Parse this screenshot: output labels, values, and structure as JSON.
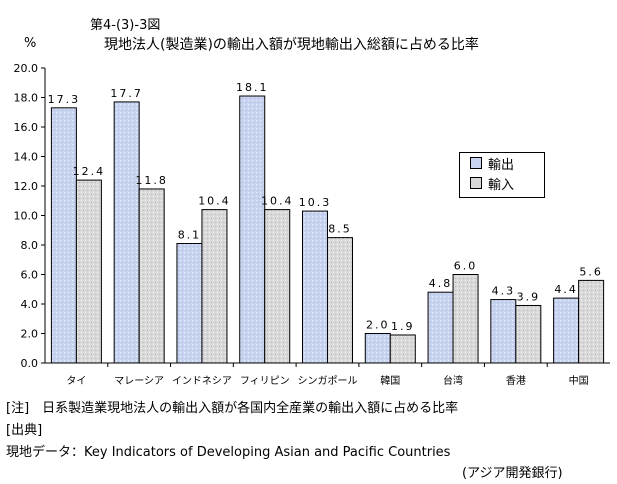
{
  "figure_number": "第4-(3)-3図",
  "unit_label": "%",
  "title": "現地法人(製造業)の輸出入額が現地輸出入総額に占める比率",
  "legend": {
    "export_label": "輸出",
    "import_label": "輸入"
  },
  "colors": {
    "export": "#c8d4ef",
    "import": "#d9d9d9",
    "grid": "#000000"
  },
  "chart_data": {
    "type": "bar",
    "title": "現地法人(製造業)の輸出入額が現地輸出入総額に占める比率",
    "xlabel": "",
    "ylabel": "%",
    "ylim": [
      0,
      20
    ],
    "yticks": [
      "0.0",
      "2.0",
      "4.0",
      "6.0",
      "8.0",
      "10.0",
      "12.0",
      "14.0",
      "16.0",
      "18.0",
      "20.0"
    ],
    "categories": [
      "タイ",
      "マレーシア",
      "インドネシア",
      "フィリピン",
      "シンガポール",
      "韓国",
      "台湾",
      "香港",
      "中国"
    ],
    "series": [
      {
        "name": "輸出",
        "values": [
          17.3,
          17.7,
          8.1,
          18.1,
          10.3,
          2.0,
          4.8,
          4.3,
          4.4
        ],
        "labels": [
          "17.3",
          "17.7",
          "8.1",
          "18.1",
          "10.3",
          "2.0",
          "4.8",
          "4.3",
          "4.4"
        ]
      },
      {
        "name": "輸入",
        "values": [
          12.4,
          11.8,
          10.4,
          10.4,
          8.5,
          1.9,
          6.0,
          3.9,
          5.6
        ],
        "labels": [
          "12.4",
          "11.8",
          "10.4",
          "10.4",
          "8.5",
          "1.9",
          "6.0",
          "3.9",
          "5.6"
        ]
      }
    ],
    "legend_position": "right",
    "grid": false
  },
  "notes": {
    "note_line": "[注]　日系製造業現地法人の輸出入額が各国内全産業の輸出入額に占める比率",
    "source_heading": "[出典]",
    "source_line": "現地データ：Key Indicators of Developing Asian and Pacific Countries",
    "source_org": "(アジア開発銀行)"
  }
}
